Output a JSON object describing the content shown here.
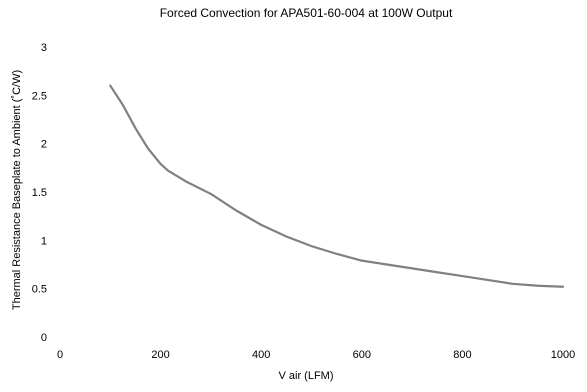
{
  "chart_data": {
    "type": "line",
    "title": "Forced Convection for APA501-60-004 at 100W Output",
    "xlabel": "V air (LFM)",
    "ylabel": "Thermal Resistance Baseplate to Ambient (˚C/W)",
    "xlim": [
      0,
      1000
    ],
    "ylim": [
      0,
      3
    ],
    "x_ticks": [
      "0",
      "200",
      "400",
      "600",
      "800",
      "1000"
    ],
    "y_ticks": [
      "0",
      "0.5",
      "1",
      "1.5",
      "2",
      "2.5",
      "3"
    ],
    "grid": false,
    "legend": "none",
    "series": [
      {
        "color": "#808080",
        "x": [
          100,
          125,
          150,
          175,
          200,
          215,
          250,
          300,
          350,
          400,
          450,
          500,
          550,
          600,
          650,
          700,
          750,
          800,
          850,
          900,
          950,
          1000
        ],
        "y": [
          2.6,
          2.4,
          2.16,
          1.95,
          1.79,
          1.72,
          1.61,
          1.48,
          1.31,
          1.16,
          1.04,
          0.94,
          0.86,
          0.79,
          0.75,
          0.71,
          0.67,
          0.63,
          0.59,
          0.55,
          0.53,
          0.52
        ]
      }
    ]
  }
}
